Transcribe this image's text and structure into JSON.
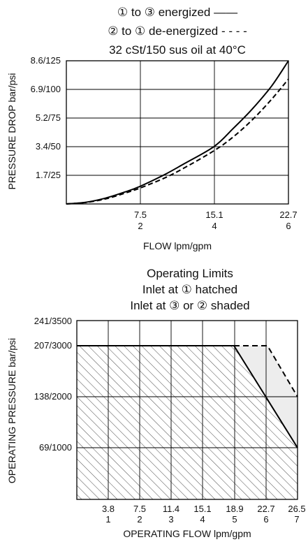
{
  "chart_data": [
    {
      "type": "line",
      "title_lines": [
        "① to ③ energized ——",
        "② to ① de-energized - - - -",
        "32 cSt/150 sus oil at 40°C"
      ],
      "xlabel": "FLOW lpm/gpm",
      "ylabel": "PRESSURE DROP bar/psi",
      "x_ticks": [
        {
          "top": "7.5",
          "bottom": "2"
        },
        {
          "top": "15.1",
          "bottom": "4"
        },
        {
          "top": "22.7",
          "bottom": "6"
        }
      ],
      "y_ticks": [
        "1.7/25",
        "3.4/50",
        "5.2/75",
        "6.9/100",
        "8.6/125"
      ],
      "xlim": [
        0,
        22.7
      ],
      "ylim": [
        0,
        8.6
      ],
      "series": [
        {
          "style": "solid",
          "x": [
            0,
            2,
            4,
            6,
            7.5,
            10,
            12,
            15.1,
            17,
            19,
            21,
            22.7
          ],
          "y": [
            0,
            0.1,
            0.35,
            0.72,
            1.05,
            1.75,
            2.4,
            3.45,
            4.5,
            5.7,
            7.1,
            8.6
          ]
        },
        {
          "style": "dashed",
          "x": [
            0,
            2,
            4,
            6,
            7.5,
            10,
            12,
            15.1,
            17,
            19,
            21,
            22.7
          ],
          "y": [
            0,
            0.09,
            0.3,
            0.65,
            0.95,
            1.55,
            2.15,
            3.2,
            4.0,
            5.05,
            6.3,
            7.5
          ]
        }
      ]
    },
    {
      "type": "area",
      "title_lines": [
        "Operating Limits",
        "Inlet at ① hatched",
        "Inlet at ③ or ② shaded"
      ],
      "xlabel": "OPERATING FLOW lpm/gpm",
      "ylabel": "OPERATING PRESSURE bar/psi",
      "x_ticks": [
        {
          "top": "3.8",
          "bottom": "1"
        },
        {
          "top": "7.5",
          "bottom": "2"
        },
        {
          "top": "11.4",
          "bottom": "3"
        },
        {
          "top": "15.1",
          "bottom": "4"
        },
        {
          "top": "18.9",
          "bottom": "5"
        },
        {
          "top": "22.7",
          "bottom": "6"
        },
        {
          "top": "26.5",
          "bottom": "7"
        }
      ],
      "y_ticks": [
        "69/1000",
        "138/2000",
        "207/3000",
        "241/3500"
      ],
      "xlim": [
        0,
        26.5
      ],
      "ylim": [
        0,
        241
      ],
      "series": [
        {
          "region": "hatched",
          "x": [
            0,
            18.9,
            26.5
          ],
          "y": [
            207,
            207,
            69
          ]
        },
        {
          "region": "shaded",
          "x": [
            0,
            22.7,
            26.5
          ],
          "y": [
            207,
            207,
            138
          ]
        }
      ]
    }
  ]
}
